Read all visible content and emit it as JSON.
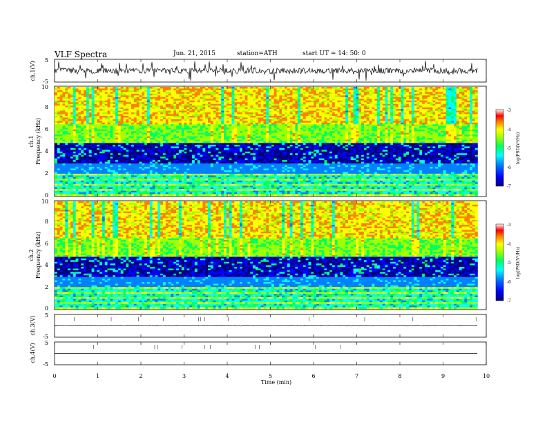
{
  "header": {
    "title": "VLF  Spectra",
    "date": "Jun. 21, 2015",
    "station": "station=ATH",
    "start": "start  UT  =  14: 50: 0"
  },
  "chart_data": [
    {
      "id": "ch1-waveform",
      "type": "line",
      "ylabel": "ch.1(V)",
      "ylim": [
        -5,
        5
      ],
      "yticks": [
        "5",
        "-5"
      ],
      "xlim": [
        0,
        10
      ],
      "series": [
        {
          "values_mean": 0,
          "noise_amplitude": 1.2,
          "spikes": true
        }
      ]
    },
    {
      "id": "ch1-spectrogram",
      "type": "heatmap",
      "ylabel": "ch.1\nFrequency (kHz)",
      "ylabel_parts": [
        "ch.1",
        "Frequency (kHz)"
      ],
      "ylim": [
        0,
        10
      ],
      "yticks": [
        "0",
        "2",
        "4",
        "6",
        "8",
        "10"
      ],
      "xlim": [
        0,
        9.8
      ],
      "colorbar": {
        "label": "log(PSD(V²/Hz)",
        "range": [
          -7,
          -3
        ],
        "ticks": [
          "-3",
          "-4",
          "-5",
          "-6",
          "-7"
        ]
      },
      "bands": [
        {
          "freq": [
            6.5,
            10
          ],
          "level": -3.5,
          "description_hidden": true
        },
        {
          "freq": [
            4.8,
            6.5
          ],
          "level": -4.6
        },
        {
          "freq": [
            3.0,
            4.8
          ],
          "level": -6.5
        },
        {
          "freq": [
            2.0,
            3.0
          ],
          "level": -5.6
        },
        {
          "freq": [
            0,
            2.0
          ],
          "level": -5.3
        }
      ]
    },
    {
      "id": "ch2-spectrogram",
      "type": "heatmap",
      "ylabel_parts": [
        "ch.2",
        "Frequency (kHz)"
      ],
      "ylim": [
        0,
        10
      ],
      "yticks": [
        "0",
        "2",
        "4",
        "6",
        "8",
        "10"
      ],
      "xlim": [
        0,
        9.8
      ],
      "colorbar": {
        "label": "log(PSD(V²/Hz)",
        "range": [
          -7,
          -3
        ],
        "ticks": [
          "-3",
          "-4",
          "-5",
          "-6",
          "-7"
        ]
      }
    },
    {
      "id": "ch3-waveform",
      "type": "line",
      "ylabel": "ch.3(V)",
      "ylim": [
        -5,
        5
      ],
      "yticks": [
        "5",
        "-5"
      ],
      "xlim": [
        0,
        10
      ],
      "series": [
        {
          "values_mean": 0,
          "noise_amplitude": 0.1
        }
      ]
    },
    {
      "id": "ch4-waveform",
      "type": "line",
      "ylabel": "ch.4(V)",
      "ylim": [
        -5,
        5
      ],
      "yticks": [
        "5",
        "-5"
      ],
      "xlim": [
        0,
        10
      ],
      "series": [
        {
          "values_mean": 0,
          "noise_amplitude": 0.0
        }
      ]
    }
  ],
  "xaxis": {
    "label": "Time  (min)",
    "ticks": [
      "0",
      "1",
      "2",
      "3",
      "4",
      "5",
      "6",
      "7",
      "8",
      "9",
      "10"
    ],
    "range": [
      0,
      10
    ]
  },
  "colors": {
    "colormap": [
      "#00007a",
      "#0000ff",
      "#0080ff",
      "#00ffff",
      "#00ff60",
      "#a0ff00",
      "#ffff00",
      "#ff8000",
      "#ff0000",
      "#ffffff"
    ]
  }
}
